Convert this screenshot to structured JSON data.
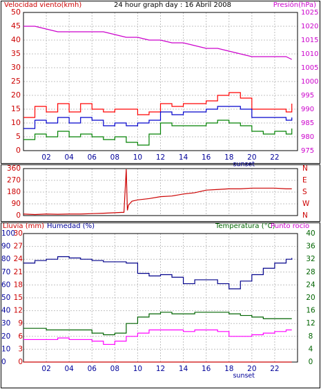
{
  "colors": {
    "wind_speed": "#ff0000",
    "wind_gust": "#ff0000",
    "wind_avg": "#0000cc",
    "wind_low": "#008000",
    "pressure": "#cc00cc",
    "direction": "#cc0000",
    "rain": "#cc0000",
    "humidity": "#00008b",
    "temperature": "#006400",
    "dewpoint": "#ff00ff",
    "axis_left_red": "#cc0000",
    "axis_right_magenta": "#cc00cc",
    "axis_blue": "#000099",
    "axis_green": "#006400",
    "grid": "#c0c0c0",
    "frame": "#000000"
  },
  "chart_data": [
    {
      "type": "line",
      "title": "24 hour graph day : 16 Abril 2008",
      "ylabel_left": "Velocidad viento(kmh)",
      "ylabel_right": "Presión(hPa)",
      "ylim_left": [
        0,
        50
      ],
      "ylim_right": [
        975,
        1025
      ],
      "yticks_left": [
        "0",
        "5",
        "10",
        "15",
        "20",
        "25",
        "30",
        "35",
        "40",
        "45",
        "50"
      ],
      "yticks_right": [
        "975",
        "980",
        "985",
        "990",
        "995",
        "1000",
        "1005",
        "1010",
        "1015",
        "1020",
        "1025"
      ],
      "xticks": [
        "02",
        "04",
        "06",
        "08",
        "10",
        "12",
        "14",
        "16",
        "18",
        "20",
        "22"
      ],
      "xannotation": "sunset",
      "xlim": [
        0,
        24
      ],
      "grid": true,
      "series": [
        {
          "key": "pressure",
          "axis": "right",
          "x": [
            0,
            1,
            2,
            3,
            4,
            5,
            6,
            7,
            8,
            9,
            10,
            11,
            12,
            13,
            14,
            15,
            16,
            17,
            18,
            19,
            20,
            21,
            22,
            23,
            23.5
          ],
          "values": [
            1020,
            1020,
            1019,
            1018,
            1018,
            1018,
            1018,
            1018,
            1017,
            1016,
            1016,
            1015,
            1015,
            1014,
            1014,
            1013,
            1012,
            1012,
            1011,
            1010,
            1009,
            1009,
            1009,
            1009,
            1008
          ]
        },
        {
          "key": "wind_gust",
          "axis": "left",
          "x": [
            0,
            1,
            2,
            3,
            4,
            5,
            6,
            7,
            8,
            9,
            10,
            11,
            12,
            13,
            14,
            15,
            16,
            17,
            18,
            19,
            20,
            21,
            22,
            23,
            23.5
          ],
          "values": [
            12,
            16,
            14,
            17,
            14,
            17,
            15,
            14,
            15,
            15,
            13,
            14,
            17,
            16,
            17,
            17,
            18,
            20,
            21,
            19,
            15,
            15,
            15,
            14,
            17
          ]
        },
        {
          "key": "wind_avg",
          "axis": "left",
          "x": [
            0,
            1,
            2,
            3,
            4,
            5,
            6,
            7,
            8,
            9,
            10,
            11,
            12,
            13,
            14,
            15,
            16,
            17,
            18,
            19,
            20,
            21,
            22,
            23,
            23.5
          ],
          "values": [
            8,
            11,
            10,
            12,
            10,
            12,
            11,
            9,
            10,
            9,
            10,
            11,
            14,
            13,
            14,
            14,
            15,
            16,
            16,
            15,
            12,
            12,
            12,
            11,
            12
          ]
        },
        {
          "key": "wind_low",
          "axis": "left",
          "x": [
            0,
            1,
            2,
            3,
            4,
            5,
            6,
            7,
            8,
            9,
            10,
            11,
            12,
            13,
            14,
            15,
            16,
            17,
            18,
            19,
            20,
            21,
            22,
            23,
            23.5
          ],
          "values": [
            4,
            6,
            5,
            7,
            5,
            6,
            5,
            4,
            5,
            3,
            2,
            6,
            10,
            9,
            9,
            9,
            10,
            11,
            10,
            9,
            7,
            6,
            7,
            6,
            8
          ]
        }
      ]
    },
    {
      "type": "line",
      "yticks": [
        "0",
        "90",
        "180",
        "270",
        "360"
      ],
      "yticks_right": [
        "N",
        "E",
        "S",
        "W",
        "N"
      ],
      "ylim": [
        0,
        360
      ],
      "xlim": [
        0,
        24
      ],
      "grid": true,
      "series": [
        {
          "key": "direction",
          "x": [
            0,
            1,
            2,
            3,
            4,
            5,
            6,
            7,
            8,
            8.8,
            9,
            9.1,
            9.2,
            9.5,
            10,
            11,
            12,
            13,
            14,
            15,
            16,
            17,
            18,
            19,
            20,
            21,
            22,
            23,
            23.5
          ],
          "values": [
            12,
            8,
            12,
            10,
            12,
            12,
            15,
            18,
            22,
            25,
            355,
            40,
            80,
            110,
            120,
            130,
            145,
            150,
            165,
            175,
            195,
            200,
            205,
            205,
            210,
            210,
            210,
            205,
            205
          ]
        }
      ]
    },
    {
      "type": "line",
      "ylabel_left": "Lluvia (mm)",
      "ylabel_humidity": "Humedad (%)",
      "ylabel_right": "Temperatura (°C)",
      "ylabel_right2": "Punto rocío",
      "ylim_rain": [
        0,
        30
      ],
      "ylim_humidity": [
        0,
        100
      ],
      "ylim_right": [
        0,
        40
      ],
      "yticks_rain": [
        "0",
        "3",
        "6",
        "9",
        "12",
        "15",
        "18",
        "21",
        "24",
        "27",
        "30"
      ],
      "yticks_humidity": [
        "0",
        "10",
        "20",
        "30",
        "40",
        "50",
        "60",
        "70",
        "80",
        "90",
        "100"
      ],
      "yticks_right": [
        "0",
        "4",
        "8",
        "12",
        "16",
        "20",
        "24",
        "28",
        "32",
        "36",
        "40"
      ],
      "xticks": [
        "02",
        "04",
        "06",
        "08",
        "10",
        "12",
        "14",
        "16",
        "18",
        "20",
        "22"
      ],
      "xannotation": "sunset",
      "xlim": [
        0,
        24
      ],
      "grid": true,
      "series": [
        {
          "key": "humidity",
          "axis": "humidity",
          "x": [
            0,
            1,
            2,
            3,
            4,
            5,
            6,
            7,
            8,
            9,
            10,
            11,
            12,
            13,
            14,
            15,
            16,
            17,
            18,
            19,
            20,
            21,
            22,
            23,
            23.5
          ],
          "values": [
            77,
            79,
            80,
            82,
            81,
            80,
            79,
            78,
            78,
            77,
            69,
            67,
            68,
            66,
            61,
            64,
            64,
            61,
            57,
            63,
            68,
            73,
            77,
            80,
            81
          ]
        },
        {
          "key": "temperature",
          "axis": "right",
          "x": [
            0,
            1,
            2,
            3,
            4,
            5,
            6,
            7,
            8,
            9,
            10,
            11,
            12,
            13,
            14,
            15,
            16,
            17,
            18,
            19,
            20,
            21,
            22,
            23,
            23.5
          ],
          "values": [
            10.5,
            10.5,
            10,
            10,
            10,
            10,
            9,
            8.5,
            9,
            12,
            14,
            15,
            15.5,
            15,
            15,
            15.5,
            15.5,
            15.5,
            15,
            14.5,
            14,
            13.5,
            13.5,
            13.5,
            13.5
          ]
        },
        {
          "key": "dewpoint",
          "axis": "right",
          "x": [
            0,
            1,
            2,
            3,
            4,
            5,
            6,
            7,
            8,
            9,
            10,
            11,
            12,
            13,
            14,
            15,
            16,
            17,
            18,
            19,
            20,
            21,
            22,
            23,
            23.5
          ],
          "values": [
            7,
            7,
            7,
            7.5,
            7,
            7,
            6.5,
            5.5,
            6.5,
            8,
            9,
            10,
            10,
            10,
            9.5,
            10,
            10,
            9.5,
            8,
            8,
            8.5,
            9,
            9.5,
            10,
            10
          ]
        },
        {
          "key": "rain",
          "axis": "rain",
          "x": [
            0,
            23.5
          ],
          "values": [
            0,
            0
          ]
        }
      ]
    }
  ]
}
